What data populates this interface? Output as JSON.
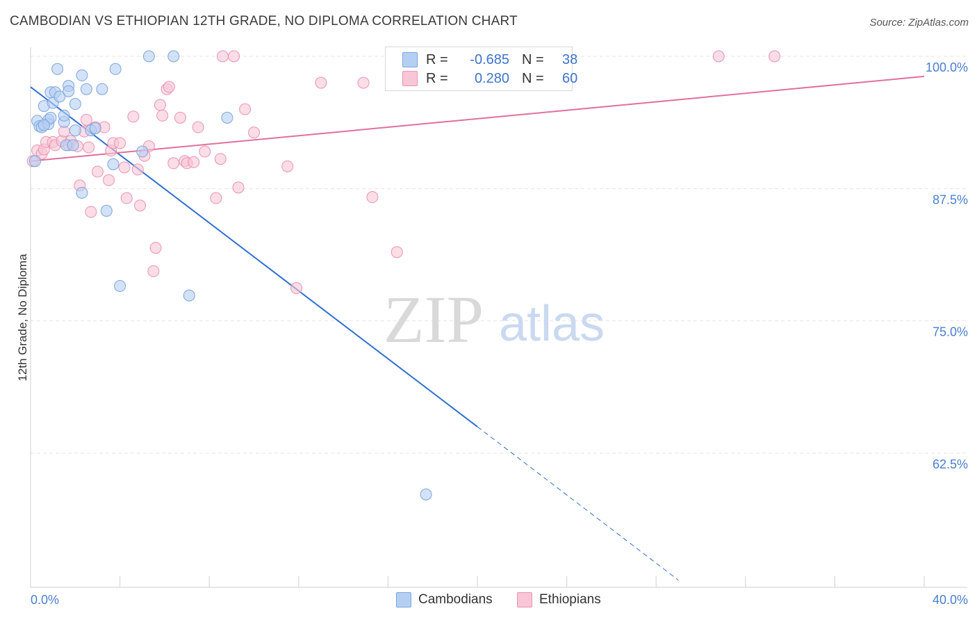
{
  "title": "CAMBODIAN VS ETHIOPIAN 12TH GRADE, NO DIPLOMA CORRELATION CHART",
  "source": "Source: ZipAtlas.com",
  "watermark": {
    "zip": "ZIP",
    "atlas": "atlas"
  },
  "legend": {
    "rows": [
      {
        "r_label": "R =",
        "r_value": "-0.685",
        "n_label": "N =",
        "n_value": "38"
      },
      {
        "r_label": "R =",
        "r_value": "0.280",
        "n_label": "N =",
        "n_value": "60"
      }
    ],
    "bottom": [
      "Cambodians",
      "Ethiopians"
    ]
  },
  "colors": {
    "cambodians_fill": "#b5cff2",
    "cambodians_stroke": "#7aa5e0",
    "cambodians_line": "#2f6fd0",
    "ethiopians_fill": "#f8c6d6",
    "ethiopians_stroke": "#ea93b2",
    "ethiopians_line": "#e0709a",
    "tick": "#4a7fd0",
    "grid": "#e4e4e4"
  },
  "chart_data": {
    "type": "scatter",
    "title": "CAMBODIAN VS ETHIOPIAN 12TH GRADE, NO DIPLOMA CORRELATION CHART",
    "xlabel": "",
    "ylabel": "12th Grade, No Diploma",
    "xlim": [
      0,
      40
    ],
    "ylim": [
      50,
      100.5
    ],
    "x_tick_labels": [
      "0.0%",
      "40.0%"
    ],
    "y_ticks": [
      62.5,
      75.0,
      87.5,
      100.0
    ],
    "y_tick_labels": [
      "62.5%",
      "75.0%",
      "87.5%",
      "100.0%"
    ],
    "grid": true,
    "legend_position": "top-center",
    "series": [
      {
        "name": "Cambodians",
        "points": [
          [
            0.3,
            93.9
          ],
          [
            0.4,
            93.4
          ],
          [
            0.5,
            93.3
          ],
          [
            0.6,
            95.3
          ],
          [
            0.8,
            94.0
          ],
          [
            0.8,
            93.6
          ],
          [
            0.9,
            94.2
          ],
          [
            0.9,
            96.6
          ],
          [
            1.0,
            95.6
          ],
          [
            1.1,
            96.6
          ],
          [
            1.2,
            98.8
          ],
          [
            1.3,
            96.2
          ],
          [
            1.5,
            93.8
          ],
          [
            1.5,
            94.4
          ],
          [
            1.6,
            91.6
          ],
          [
            1.7,
            97.2
          ],
          [
            1.7,
            96.7
          ],
          [
            2.0,
            95.5
          ],
          [
            2.0,
            93.0
          ],
          [
            2.3,
            98.2
          ],
          [
            2.3,
            87.1
          ],
          [
            2.5,
            96.9
          ],
          [
            2.7,
            93.0
          ],
          [
            2.9,
            93.2
          ],
          [
            3.2,
            96.9
          ],
          [
            3.4,
            85.4
          ],
          [
            3.7,
            89.8
          ],
          [
            3.8,
            98.8
          ],
          [
            4.0,
            78.3
          ],
          [
            5.0,
            91.0
          ],
          [
            5.3,
            100.0
          ],
          [
            6.4,
            100.0
          ],
          [
            7.1,
            77.4
          ],
          [
            8.8,
            94.2
          ],
          [
            17.7,
            58.6
          ],
          [
            0.2,
            90.1
          ],
          [
            0.6,
            93.5
          ],
          [
            1.9,
            91.6
          ]
        ],
        "trend": {
          "x": [
            0,
            20
          ],
          "y": [
            97.1,
            65.0
          ],
          "dashed_to": [
            29,
            50.5
          ]
        }
      },
      {
        "name": "Ethiopians",
        "points": [
          [
            0.1,
            90.1
          ],
          [
            0.3,
            91.1
          ],
          [
            0.5,
            90.8
          ],
          [
            0.6,
            91.2
          ],
          [
            0.7,
            91.9
          ],
          [
            1.0,
            91.9
          ],
          [
            1.1,
            91.6
          ],
          [
            1.4,
            92.0
          ],
          [
            1.5,
            92.9
          ],
          [
            1.7,
            91.6
          ],
          [
            1.8,
            92.0
          ],
          [
            2.1,
            91.5
          ],
          [
            2.2,
            87.8
          ],
          [
            2.4,
            92.9
          ],
          [
            2.5,
            94.0
          ],
          [
            2.6,
            91.4
          ],
          [
            2.7,
            85.3
          ],
          [
            2.9,
            93.3
          ],
          [
            3.0,
            89.1
          ],
          [
            3.3,
            93.3
          ],
          [
            3.5,
            88.3
          ],
          [
            3.6,
            91.1
          ],
          [
            3.7,
            91.8
          ],
          [
            4.0,
            91.8
          ],
          [
            4.2,
            89.5
          ],
          [
            4.3,
            86.6
          ],
          [
            4.6,
            94.3
          ],
          [
            4.8,
            89.3
          ],
          [
            4.9,
            85.9
          ],
          [
            5.1,
            90.6
          ],
          [
            5.3,
            91.5
          ],
          [
            5.6,
            81.9
          ],
          [
            5.5,
            79.7
          ],
          [
            5.8,
            95.4
          ],
          [
            5.9,
            94.4
          ],
          [
            6.1,
            96.9
          ],
          [
            6.2,
            97.1
          ],
          [
            6.4,
            89.9
          ],
          [
            6.7,
            94.2
          ],
          [
            6.9,
            90.1
          ],
          [
            7.0,
            89.9
          ],
          [
            7.3,
            90.0
          ],
          [
            7.5,
            93.3
          ],
          [
            7.8,
            91.0
          ],
          [
            8.3,
            86.6
          ],
          [
            8.5,
            90.3
          ],
          [
            8.6,
            100.0
          ],
          [
            9.1,
            100.0
          ],
          [
            9.3,
            87.6
          ],
          [
            9.6,
            95.0
          ],
          [
            10.0,
            92.8
          ],
          [
            11.5,
            89.6
          ],
          [
            11.9,
            78.1
          ],
          [
            13.0,
            97.5
          ],
          [
            14.9,
            97.5
          ],
          [
            15.3,
            86.7
          ],
          [
            16.4,
            81.5
          ],
          [
            20.8,
            98.4
          ],
          [
            30.8,
            100.0
          ],
          [
            33.3,
            100.0
          ]
        ],
        "trend": {
          "x": [
            0,
            40
          ],
          "y": [
            90.1,
            98.1
          ]
        }
      }
    ]
  }
}
